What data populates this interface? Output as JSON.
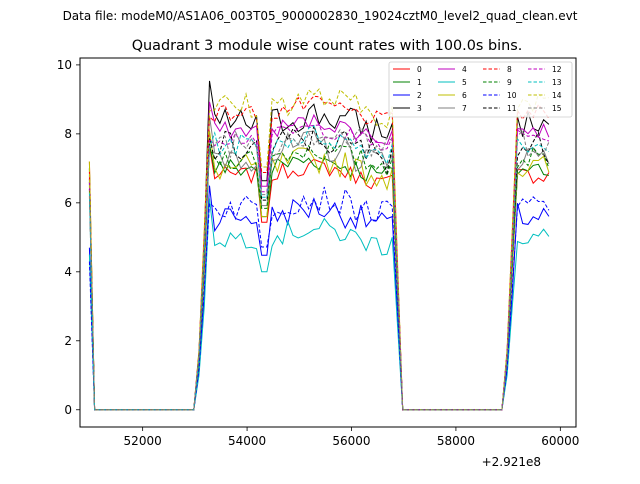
{
  "suptitle": "Data file: modeM0/AS1A06_003T05_9000002830_19024cztM0_level2_quad_clean.evt",
  "chart_data": {
    "type": "line",
    "title": "Quadrant 3 module wise count rates with 100.0s bins.",
    "xlabel": "",
    "ylabel": "",
    "x_offset_label": "+2.921e8",
    "xlim": [
      50800,
      60300
    ],
    "ylim": [
      -0.5,
      10.2
    ],
    "xticks": [
      52000,
      54000,
      56000,
      58000,
      60000
    ],
    "yticks": [
      0,
      2,
      4,
      6,
      8,
      10
    ],
    "grid": false,
    "legend_position": "top-right",
    "legend_columns": 4,
    "series": [
      {
        "name": "0",
        "color": "#ff0000",
        "dashed": false,
        "level": 6.8,
        "start": 7.2
      },
      {
        "name": "1",
        "color": "#008000",
        "dashed": false,
        "level": 7.0,
        "start": 7.0
      },
      {
        "name": "2",
        "color": "#0000ff",
        "dashed": false,
        "level": 5.6,
        "start": 4.7
      },
      {
        "name": "3",
        "color": "#000000",
        "dashed": false,
        "level": 8.3,
        "start": 6.7
      },
      {
        "name": "4",
        "color": "#bf00bf",
        "dashed": false,
        "level": 8.1,
        "start": 6.8
      },
      {
        "name": "5",
        "color": "#00bfbf",
        "dashed": false,
        "level": 5.0,
        "start": 4.5
      },
      {
        "name": "6",
        "color": "#bfbf00",
        "dashed": false,
        "level": 7.0,
        "start": 7.2
      },
      {
        "name": "7",
        "color": "#808080",
        "dashed": false,
        "level": 7.4,
        "start": 6.5
      },
      {
        "name": "8",
        "color": "#ff0000",
        "dashed": true,
        "level": 8.6,
        "start": 6.9
      },
      {
        "name": "9",
        "color": "#008000",
        "dashed": true,
        "level": 7.3,
        "start": 6.6
      },
      {
        "name": "10",
        "color": "#0000ff",
        "dashed": true,
        "level": 5.9,
        "start": 4.3
      },
      {
        "name": "11",
        "color": "#000000",
        "dashed": true,
        "level": 7.6,
        "start": 6.4
      },
      {
        "name": "12",
        "color": "#bf00bf",
        "dashed": true,
        "level": 7.9,
        "start": 6.6
      },
      {
        "name": "13",
        "color": "#00bfbf",
        "dashed": true,
        "level": 7.7,
        "start": 6.3
      },
      {
        "name": "14",
        "color": "#bfbf00",
        "dashed": true,
        "level": 8.8,
        "start": 7.0
      },
      {
        "name": "15",
        "color": "#808080",
        "dashed": true,
        "level": 7.8,
        "start": 6.2
      }
    ],
    "segments": [
      {
        "from": 50980,
        "to": 51080,
        "kind": "drop"
      },
      {
        "from": 51080,
        "to": 53080,
        "kind": "zero"
      },
      {
        "from": 53080,
        "to": 53280,
        "kind": "rise"
      },
      {
        "from": 53280,
        "to": 54280,
        "kind": "on"
      },
      {
        "from": 54280,
        "to": 54480,
        "kind": "dip"
      },
      {
        "from": 54480,
        "to": 56780,
        "kind": "on"
      },
      {
        "from": 56780,
        "to": 56980,
        "kind": "fall"
      },
      {
        "from": 56980,
        "to": 58980,
        "kind": "zero"
      },
      {
        "from": 58980,
        "to": 59180,
        "kind": "rise"
      },
      {
        "from": 59180,
        "to": 59780,
        "kind": "on"
      }
    ]
  }
}
